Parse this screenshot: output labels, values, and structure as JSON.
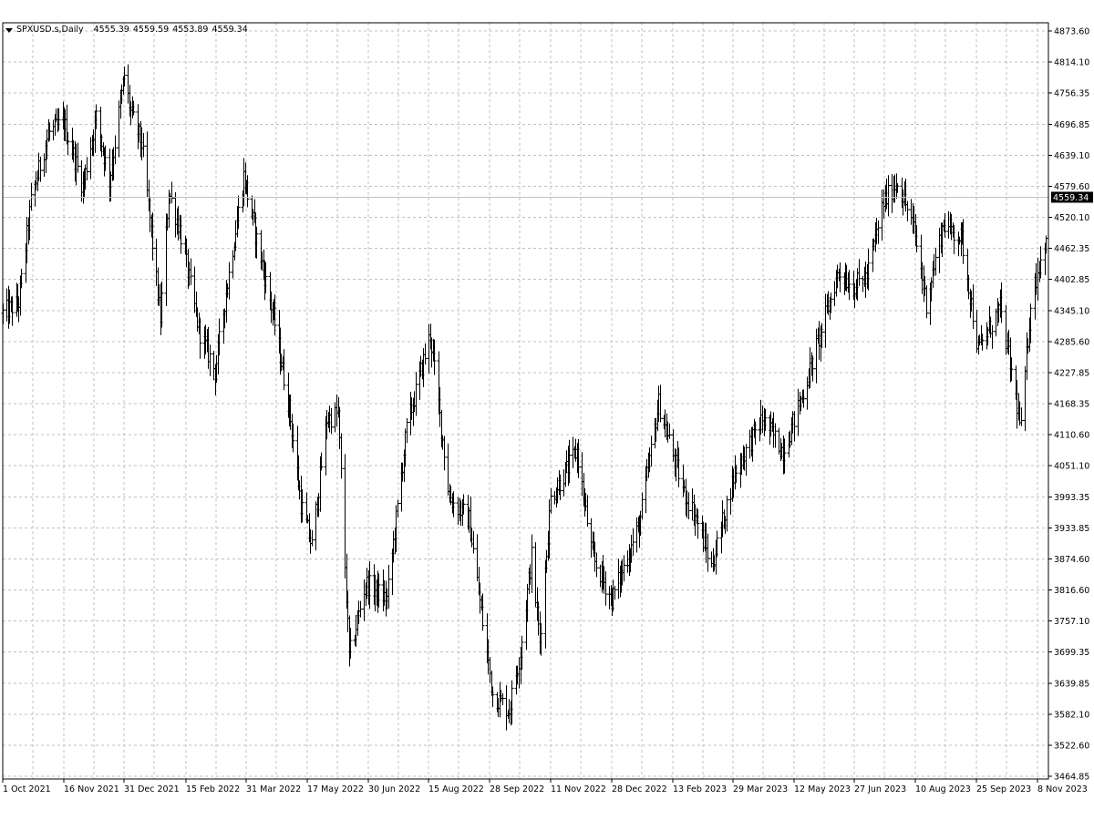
{
  "header": {
    "symbol": "SPXUSD.s,Daily",
    "open": "4555.39",
    "high": "4559.59",
    "low": "4553.89",
    "close": "4559.34"
  },
  "colors": {
    "bar": "#000000",
    "grid": "#c0c0c0",
    "frame": "#000000",
    "price_line": "#c0c0c0",
    "price_tag_bg": "#000000",
    "price_tag_text": "#ffffff",
    "background": "#ffffff"
  },
  "chart_data": {
    "type": "ohlc",
    "timeframe": "Daily",
    "symbol": "SPXUSD.s",
    "current_price": 4559.34,
    "current_price_label": "4559.34",
    "ylim": [
      3464.85,
      4873.6
    ],
    "xlim": [
      "2021-10-01",
      "2023-11-27"
    ],
    "grid": true,
    "y_ticks": [
      "4873.60",
      "4814.10",
      "4756.35",
      "4696.85",
      "4639.10",
      "4579.60",
      "4520.10",
      "4462.35",
      "4402.85",
      "4345.10",
      "4285.60",
      "4227.85",
      "4168.35",
      "4110.60",
      "4051.10",
      "3993.35",
      "3933.85",
      "3874.60",
      "3816.60",
      "3757.10",
      "3699.35",
      "3639.85",
      "3582.10",
      "3522.60",
      "3464.85"
    ],
    "x_tick_dates": [
      "2021-10-01",
      "2021-11-16",
      "2021-12-31",
      "2022-02-15",
      "2022-03-31",
      "2022-05-17",
      "2022-06-30",
      "2022-08-15",
      "2022-09-28",
      "2022-11-11",
      "2022-12-28",
      "2023-02-13",
      "2023-03-29",
      "2023-05-12",
      "2023-06-27",
      "2023-08-10",
      "2023-09-25",
      "2023-11-08"
    ],
    "x_tick_labels": [
      "1 Oct 2021",
      "16 Nov 2021",
      "31 Dec 2021",
      "15 Feb 2022",
      "31 Mar 2022",
      "17 May 2022",
      "30 Jun 2022",
      "15 Aug 2022",
      "28 Sep 2022",
      "11 Nov 2022",
      "28 Dec 2022",
      "13 Feb 2023",
      "29 Mar 2023",
      "12 May 2023",
      "27 Jun 2023",
      "10 Aug 2023",
      "25 Sep 2023",
      "8 Nov 2023"
    ],
    "close_keypoints": [
      [
        "2021-10-01",
        4340
      ],
      [
        "2021-10-13",
        4360
      ],
      [
        "2021-10-22",
        4550
      ],
      [
        "2021-11-04",
        4680
      ],
      [
        "2021-11-16",
        4700
      ],
      [
        "2021-11-30",
        4580
      ],
      [
        "2021-12-10",
        4710
      ],
      [
        "2021-12-20",
        4590
      ],
      [
        "2021-12-31",
        4790
      ],
      [
        "2022-01-05",
        4720
      ],
      [
        "2022-01-13",
        4660
      ],
      [
        "2022-01-27",
        4330
      ],
      [
        "2022-02-02",
        4570
      ],
      [
        "2022-02-10",
        4500
      ],
      [
        "2022-02-24",
        4310
      ],
      [
        "2022-03-08",
        4230
      ],
      [
        "2022-03-16",
        4380
      ],
      [
        "2022-03-29",
        4600
      ],
      [
        "2022-04-07",
        4490
      ],
      [
        "2022-04-22",
        4320
      ],
      [
        "2022-05-03",
        4160
      ],
      [
        "2022-05-12",
        3980
      ],
      [
        "2022-05-20",
        3900
      ],
      [
        "2022-05-31",
        4140
      ],
      [
        "2022-06-08",
        4150
      ],
      [
        "2022-06-16",
        3690
      ],
      [
        "2022-06-28",
        3830
      ],
      [
        "2022-07-14",
        3800
      ],
      [
        "2022-07-29",
        4120
      ],
      [
        "2022-08-16",
        4300
      ],
      [
        "2022-08-30",
        3990
      ],
      [
        "2022-09-13",
        3950
      ],
      [
        "2022-09-30",
        3620
      ],
      [
        "2022-10-12",
        3590
      ],
      [
        "2022-10-20",
        3700
      ],
      [
        "2022-10-28",
        3880
      ],
      [
        "2022-11-03",
        3720
      ],
      [
        "2022-11-11",
        3990
      ],
      [
        "2022-12-01",
        4080
      ],
      [
        "2022-12-13",
        3880
      ],
      [
        "2022-12-28",
        3800
      ],
      [
        "2023-01-18",
        3940
      ],
      [
        "2023-02-02",
        4170
      ],
      [
        "2023-02-21",
        4000
      ],
      [
        "2023-03-01",
        3960
      ],
      [
        "2023-03-13",
        3860
      ],
      [
        "2023-03-30",
        4040
      ],
      [
        "2023-04-19",
        4140
      ],
      [
        "2023-05-04",
        4080
      ],
      [
        "2023-05-19",
        4190
      ],
      [
        "2023-06-15",
        4420
      ],
      [
        "2023-06-26",
        4390
      ],
      [
        "2023-07-06",
        4410
      ],
      [
        "2023-07-18",
        4550
      ],
      [
        "2023-07-28",
        4590
      ],
      [
        "2023-08-09",
        4500
      ],
      [
        "2023-08-18",
        4360
      ],
      [
        "2023-08-31",
        4510
      ],
      [
        "2023-09-14",
        4480
      ],
      [
        "2023-09-26",
        4270
      ],
      [
        "2023-10-12",
        4350
      ],
      [
        "2023-10-27",
        4120
      ],
      [
        "2023-11-03",
        4360
      ],
      [
        "2023-11-15",
        4500
      ],
      [
        "2023-11-27",
        4559.34
      ]
    ]
  }
}
